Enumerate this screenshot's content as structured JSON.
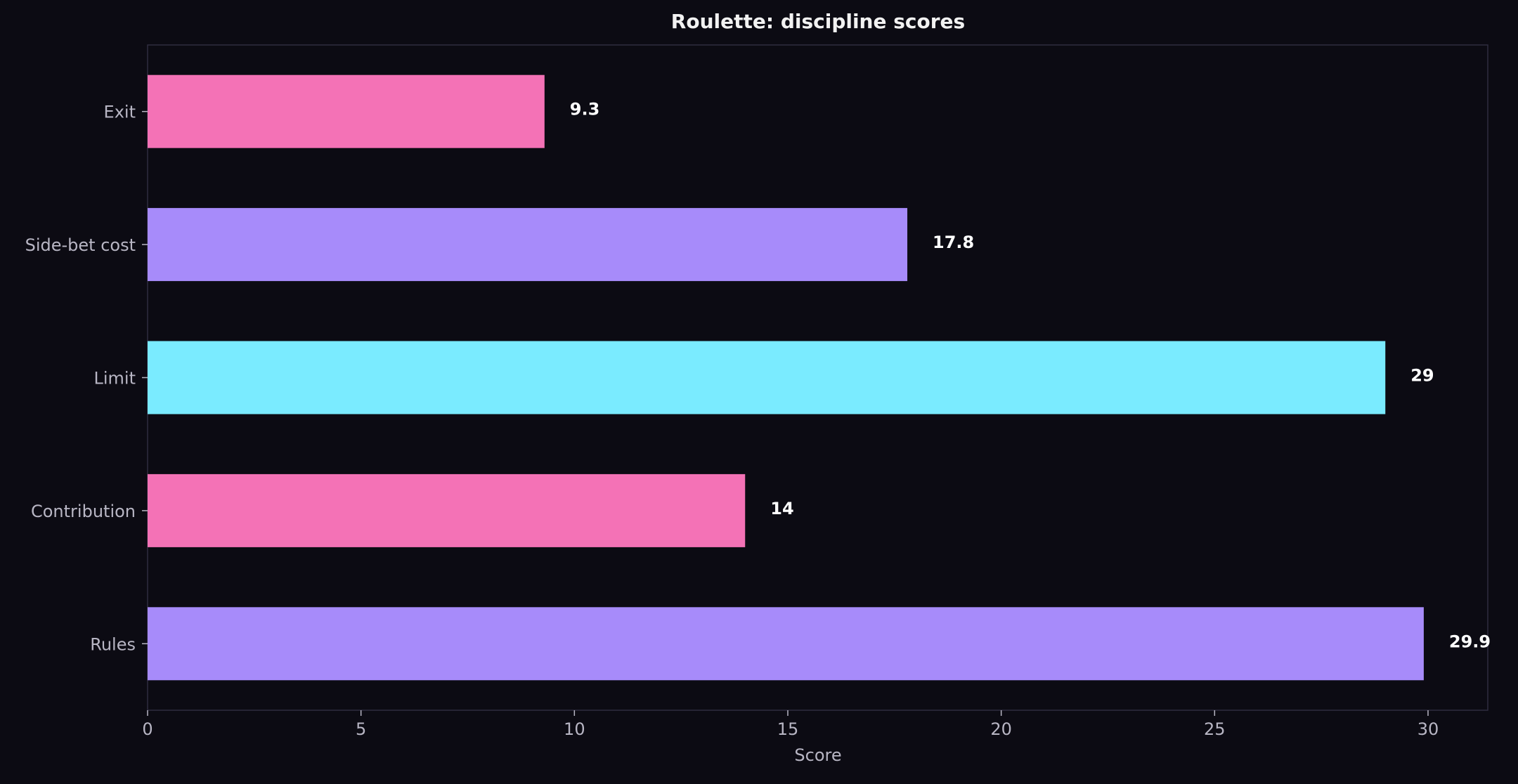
{
  "chart_data": {
    "type": "bar",
    "orientation": "horizontal",
    "title": "Roulette: discipline scores",
    "xlabel": "Score",
    "ylabel": "",
    "categories": [
      "Rules",
      "Contribution",
      "Limit",
      "Side-bet cost",
      "Exit"
    ],
    "values": [
      29.9,
      14,
      29,
      17.8,
      9.3
    ],
    "value_labels": [
      "29.9",
      "14",
      "29",
      "17.8",
      "9.3"
    ],
    "bar_colors": [
      "#a78bfa",
      "#f472b6",
      "#7aebff",
      "#a78bfa",
      "#f472b6"
    ],
    "xlim": [
      0,
      31.4
    ],
    "xticks": [
      0,
      5,
      10,
      15,
      20,
      25,
      30
    ],
    "grid": false,
    "legend": "none"
  },
  "colors": {
    "background": "#0c0b13",
    "frame": "#2e2c40",
    "text": "#b8b6c4",
    "title": "#f2f2f2"
  }
}
